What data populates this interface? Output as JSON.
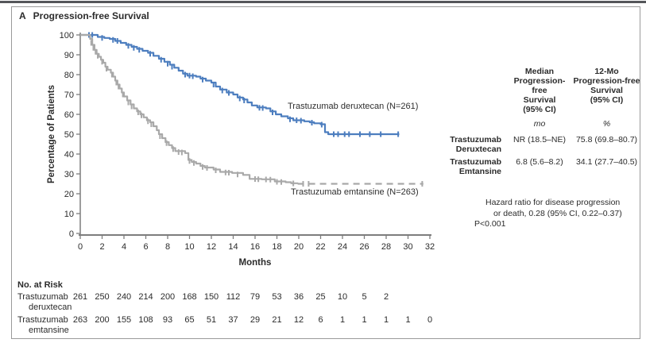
{
  "panel": {
    "letter": "A",
    "title": "Progression-free Survival"
  },
  "chart_data": {
    "type": "line",
    "subtype": "kaplan-meier-step",
    "title": "Progression-free Survival",
    "xlabel": "Months",
    "ylabel": "Percentage of Patients",
    "xlim": [
      0,
      32
    ],
    "ylim": [
      0,
      100
    ],
    "x_ticks": [
      0,
      2,
      4,
      6,
      8,
      10,
      12,
      14,
      16,
      18,
      20,
      22,
      24,
      26,
      28,
      30,
      32
    ],
    "y_ticks": [
      0,
      10,
      20,
      30,
      40,
      50,
      60,
      70,
      80,
      90,
      100
    ],
    "grid": false,
    "series": [
      {
        "name": "Trastuzumab deruxtecan",
        "label": "Trastuzumab deruxtecan (N=261)",
        "n": 261,
        "color": "#4d7ebf",
        "dash": null,
        "points": [
          [
            0,
            100
          ],
          [
            1.4,
            100
          ],
          [
            1.6,
            99
          ],
          [
            2.2,
            98.5
          ],
          [
            2.7,
            98
          ],
          [
            3.2,
            97
          ],
          [
            3.7,
            96
          ],
          [
            4.2,
            95
          ],
          [
            4.7,
            94
          ],
          [
            5.2,
            93
          ],
          [
            5.7,
            92
          ],
          [
            6.2,
            91
          ],
          [
            6.7,
            89.5
          ],
          [
            7.2,
            88
          ],
          [
            7.7,
            86.5
          ],
          [
            8.2,
            85
          ],
          [
            8.6,
            83.5
          ],
          [
            9.0,
            82
          ],
          [
            9.4,
            80.5
          ],
          [
            9.8,
            79.5
          ],
          [
            10.6,
            79
          ],
          [
            11.0,
            78
          ],
          [
            11.5,
            77
          ],
          [
            12.0,
            76
          ],
          [
            12.4,
            74
          ],
          [
            12.8,
            72.5
          ],
          [
            13.4,
            71
          ],
          [
            14.0,
            70
          ],
          [
            14.4,
            68.5
          ],
          [
            14.9,
            67.5
          ],
          [
            15.3,
            66
          ],
          [
            15.7,
            64.5
          ],
          [
            16.2,
            63.5
          ],
          [
            17.0,
            63
          ],
          [
            17.4,
            61.5
          ],
          [
            17.9,
            60
          ],
          [
            18.4,
            59
          ],
          [
            19.0,
            58
          ],
          [
            19.5,
            57
          ],
          [
            20.5,
            56.5
          ],
          [
            21.0,
            56
          ],
          [
            21.4,
            55.5
          ],
          [
            22.0,
            55
          ],
          [
            22.4,
            51
          ],
          [
            22.7,
            50
          ],
          [
            29.2,
            50
          ]
        ],
        "censors": [
          [
            0.8,
            100
          ],
          [
            1.1,
            100
          ],
          [
            2.0,
            98.5
          ],
          [
            3.0,
            97.5
          ],
          [
            3.4,
            97
          ],
          [
            4.4,
            94.5
          ],
          [
            4.9,
            93.5
          ],
          [
            5.4,
            92.5
          ],
          [
            6.4,
            90.5
          ],
          [
            7.4,
            87.5
          ],
          [
            8.0,
            85.5
          ],
          [
            8.4,
            84
          ],
          [
            9.6,
            80
          ],
          [
            10.0,
            79.5
          ],
          [
            10.3,
            79.2
          ],
          [
            11.2,
            77.5
          ],
          [
            12.2,
            75
          ],
          [
            13.0,
            72
          ],
          [
            13.6,
            70.8
          ],
          [
            14.6,
            68
          ],
          [
            15.0,
            67
          ],
          [
            16.4,
            63.3
          ],
          [
            16.7,
            63.2
          ],
          [
            17.6,
            61
          ],
          [
            19.2,
            57.5
          ],
          [
            19.8,
            57
          ],
          [
            20.2,
            56.8
          ],
          [
            21.2,
            55.8
          ],
          [
            22.1,
            54.8
          ],
          [
            23.2,
            50
          ],
          [
            23.6,
            50
          ],
          [
            24.2,
            50
          ],
          [
            24.6,
            50
          ],
          [
            25.6,
            50
          ],
          [
            26.5,
            50
          ],
          [
            27.5,
            50
          ],
          [
            29.1,
            50
          ]
        ]
      },
      {
        "name": "Trastuzumab emtansine",
        "label": "Trastuzumab emtansine (N=263)",
        "n": 263,
        "color": "#a9a9a9",
        "dash": null,
        "points": [
          [
            0,
            100
          ],
          [
            0.7,
            100
          ],
          [
            0.9,
            98
          ],
          [
            1.1,
            95
          ],
          [
            1.3,
            92.5
          ],
          [
            1.5,
            90.5
          ],
          [
            1.7,
            89
          ],
          [
            1.9,
            87.5
          ],
          [
            2.1,
            86
          ],
          [
            2.3,
            84
          ],
          [
            2.5,
            82.5
          ],
          [
            2.8,
            81
          ],
          [
            3.0,
            79
          ],
          [
            3.2,
            77
          ],
          [
            3.4,
            75
          ],
          [
            3.6,
            73
          ],
          [
            3.8,
            71
          ],
          [
            4.0,
            69
          ],
          [
            4.3,
            67
          ],
          [
            4.6,
            65
          ],
          [
            4.9,
            63
          ],
          [
            5.2,
            61.5
          ],
          [
            5.5,
            60
          ],
          [
            5.8,
            58.5
          ],
          [
            6.1,
            57
          ],
          [
            6.4,
            56
          ],
          [
            6.7,
            54
          ],
          [
            7.0,
            52
          ],
          [
            7.2,
            50
          ],
          [
            7.5,
            48
          ],
          [
            7.8,
            46
          ],
          [
            8.1,
            44.5
          ],
          [
            8.4,
            43
          ],
          [
            8.7,
            41.5
          ],
          [
            9.6,
            40.5
          ],
          [
            9.9,
            37
          ],
          [
            10.2,
            36
          ],
          [
            10.6,
            35.2
          ],
          [
            11.0,
            34
          ],
          [
            11.4,
            33.2
          ],
          [
            12.2,
            32.2
          ],
          [
            12.8,
            31
          ],
          [
            13.9,
            30.5
          ],
          [
            14.9,
            29.5
          ],
          [
            15.5,
            27.5
          ],
          [
            16.6,
            27.3
          ],
          [
            17.8,
            26.2
          ],
          [
            18.8,
            25.8
          ],
          [
            19.3,
            25.3
          ],
          [
            19.9,
            25
          ]
        ],
        "censors": [
          [
            1.0,
            96
          ],
          [
            1.2,
            93.5
          ],
          [
            1.4,
            91.5
          ],
          [
            1.6,
            89.5
          ],
          [
            2.0,
            86.5
          ],
          [
            2.4,
            83
          ],
          [
            2.9,
            80
          ],
          [
            3.3,
            76
          ],
          [
            3.5,
            74
          ],
          [
            3.9,
            70
          ],
          [
            4.4,
            66
          ],
          [
            4.7,
            64
          ],
          [
            5.3,
            61
          ],
          [
            5.6,
            59.5
          ],
          [
            6.2,
            56.5
          ],
          [
            6.5,
            55
          ],
          [
            7.3,
            49
          ],
          [
            7.9,
            45.5
          ],
          [
            8.5,
            42.5
          ],
          [
            9.0,
            41
          ],
          [
            9.3,
            40.8
          ],
          [
            10.0,
            36.5
          ],
          [
            10.4,
            35.5
          ],
          [
            11.2,
            33.5
          ],
          [
            11.6,
            33
          ],
          [
            12.4,
            31.8
          ],
          [
            13.3,
            30.7
          ],
          [
            13.6,
            30.6
          ],
          [
            14.4,
            29.7
          ],
          [
            16.0,
            27.4
          ],
          [
            16.3,
            27.3
          ],
          [
            17.0,
            27.2
          ],
          [
            17.4,
            27.1
          ],
          [
            18.0,
            26
          ],
          [
            18.4,
            25.9
          ],
          [
            19.5,
            25.2
          ]
        ]
      },
      {
        "name": "Trastuzumab emtansine (censored tail)",
        "label": "",
        "color": "#a9a9a9",
        "dash": "8,6",
        "points": [
          [
            19.9,
            25
          ],
          [
            31.4,
            25
          ]
        ],
        "censors": [
          [
            20.4,
            25
          ],
          [
            20.9,
            25
          ],
          [
            31.3,
            25
          ]
        ]
      }
    ]
  },
  "results_table": {
    "col1_header": "Median\nProgression-free\nSurvival\n(95% CI)",
    "col2_header": "12-Mo\nProgression-free\nSurvival\n(95% CI)",
    "col1_unit": "mo",
    "col2_unit": "%",
    "rows": [
      {
        "label": "Trastuzumab\nDeruxtecan",
        "median": "NR (18.5–NE)",
        "twelve_mo": "75.8 (69.8–80.7)"
      },
      {
        "label": "Trastuzumab\nEmtansine",
        "median": "6.8 (5.6–8.2)",
        "twelve_mo": "34.1 (27.7–40.5)"
      }
    ]
  },
  "hazard_note": {
    "line1": "Hazard ratio for disease progression",
    "line2": "or death, 0.28 (95% CI, 0.22–0.37)",
    "line3": "P<0.001"
  },
  "risk_table": {
    "title": "No. at Risk",
    "rows": [
      {
        "label_line1": "Trastuzumab",
        "label_line2": "deruxtecan",
        "values": [
          261,
          250,
          240,
          214,
          200,
          168,
          150,
          112,
          79,
          53,
          36,
          25,
          10,
          5,
          2
        ]
      },
      {
        "label_line1": "Trastuzumab",
        "label_line2": "emtansine",
        "values": [
          263,
          200,
          155,
          108,
          93,
          65,
          51,
          37,
          29,
          21,
          12,
          6,
          1,
          1,
          1,
          1,
          0
        ]
      }
    ]
  }
}
